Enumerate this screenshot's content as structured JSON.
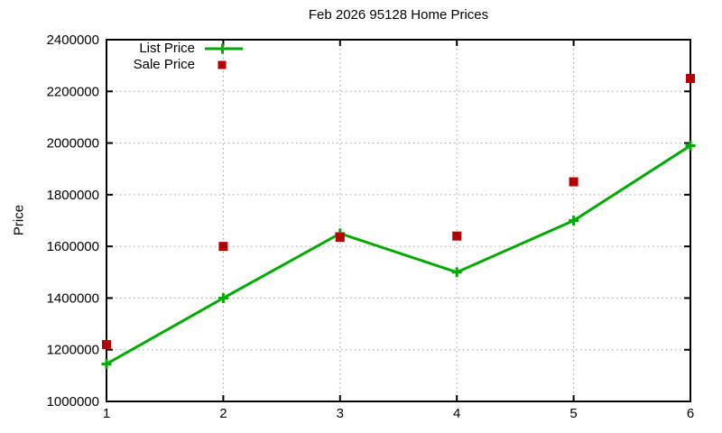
{
  "chart_data": {
    "type": "line",
    "title": "Feb 2026 95128 Home Prices",
    "xlabel": "",
    "ylabel": "Price",
    "x": [
      1,
      2,
      3,
      4,
      5,
      6
    ],
    "series": [
      {
        "name": "List Price",
        "style": "line-with-plus-markers",
        "color": "#00AA00",
        "values": [
          1145000,
          1400000,
          1650000,
          1500000,
          1700000,
          1990000
        ]
      },
      {
        "name": "Sale Price",
        "style": "square-markers",
        "color": "#B40000",
        "values": [
          1220000,
          1600000,
          1635000,
          1640000,
          1850000,
          2250000
        ]
      }
    ],
    "xlim": [
      1,
      6
    ],
    "ylim": [
      1000000,
      2400000
    ],
    "xticks": [
      1,
      2,
      3,
      4,
      5,
      6
    ],
    "yticks": [
      1000000,
      1200000,
      1400000,
      1600000,
      1800000,
      2000000,
      2200000,
      2400000
    ],
    "grid": "dotted",
    "grid_color": "#9e9e9e",
    "axis_color": "#000000",
    "background": "#ffffff",
    "legend_position": "top-left"
  }
}
